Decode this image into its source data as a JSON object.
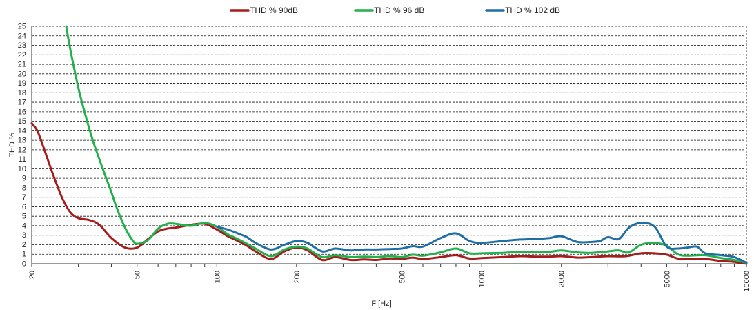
{
  "chart_data": {
    "type": "line",
    "title": "",
    "xlabel": "F [Hz]",
    "ylabel": "THD %",
    "xscale": "log",
    "xlim": [
      20,
      10000
    ],
    "ylim": [
      0,
      25
    ],
    "grid": "horizontal dashed",
    "legend_position": "top-center",
    "x_ticks": [
      "20",
      "50",
      "100",
      "200",
      "500",
      "1000",
      "2000",
      "5000",
      "10000"
    ],
    "y_ticks": [
      "0",
      "1",
      "2",
      "3",
      "4",
      "5",
      "6",
      "7",
      "8",
      "9",
      "10",
      "11",
      "12",
      "13",
      "14",
      "15",
      "16",
      "17",
      "18",
      "19",
      "20",
      "21",
      "22",
      "23",
      "24",
      "25"
    ],
    "series": [
      {
        "name": "THD % 90dB",
        "color": "#a51c1c",
        "x": [
          20,
          21,
          22,
          24,
          26,
          28,
          30,
          33,
          36,
          40,
          45,
          50,
          55,
          60,
          65,
          70,
          80,
          90,
          100,
          110,
          120,
          130,
          140,
          160,
          180,
          200,
          220,
          250,
          280,
          320,
          360,
          400,
          450,
          500,
          550,
          600,
          700,
          800,
          900,
          1000,
          1200,
          1400,
          1600,
          1800,
          2000,
          2300,
          2600,
          3000,
          3500,
          4000,
          4500,
          5000,
          5500,
          6000,
          7000,
          8000,
          9000,
          10000
        ],
        "values": [
          14.8,
          14.0,
          12.5,
          9.5,
          7.0,
          5.4,
          4.8,
          4.6,
          4.1,
          2.7,
          1.7,
          1.7,
          2.6,
          3.4,
          3.7,
          3.8,
          4.1,
          4.2,
          3.6,
          2.9,
          2.4,
          1.9,
          1.3,
          0.5,
          1.3,
          1.7,
          1.4,
          0.4,
          0.7,
          0.4,
          0.45,
          0.4,
          0.55,
          0.5,
          0.65,
          0.5,
          0.7,
          0.9,
          0.55,
          0.6,
          0.7,
          0.8,
          0.75,
          0.75,
          0.8,
          0.65,
          0.7,
          0.8,
          0.8,
          1.1,
          1.1,
          0.95,
          0.55,
          0.5,
          0.5,
          0.3,
          0.2,
          0.0
        ]
      },
      {
        "name": "THD % 96 dB",
        "color": "#22b14c",
        "x": [
          27,
          28,
          30,
          32,
          34,
          36,
          38,
          40,
          42,
          45,
          48,
          50,
          55,
          60,
          65,
          70,
          80,
          90,
          100,
          110,
          120,
          130,
          140,
          160,
          180,
          200,
          220,
          250,
          280,
          320,
          360,
          400,
          450,
          500,
          550,
          600,
          700,
          800,
          900,
          1000,
          1200,
          1400,
          1600,
          1800,
          2000,
          2300,
          2600,
          3000,
          3300,
          3600,
          4000,
          4500,
          5000,
          5500,
          6000,
          7000,
          8000,
          9000,
          10000
        ],
        "values": [
          25,
          22.5,
          18.5,
          15.5,
          13.0,
          11.0,
          9.2,
          7.5,
          5.8,
          3.8,
          2.5,
          2.1,
          2.5,
          3.7,
          4.2,
          4.2,
          4.0,
          4.3,
          3.9,
          3.1,
          2.6,
          2.1,
          1.6,
          0.8,
          1.5,
          1.8,
          1.6,
          0.7,
          0.9,
          0.7,
          0.75,
          0.7,
          0.8,
          0.7,
          0.95,
          0.85,
          1.2,
          1.6,
          1.1,
          1.1,
          1.15,
          1.25,
          1.25,
          1.25,
          1.4,
          1.2,
          1.15,
          1.3,
          1.4,
          1.2,
          2.0,
          2.2,
          1.9,
          1.0,
          0.85,
          0.9,
          0.6,
          0.4,
          0.1
        ]
      },
      {
        "name": "THD % 102 dB",
        "color": "#1f6fa6",
        "x": [
          100,
          110,
          120,
          130,
          140,
          160,
          180,
          200,
          220,
          250,
          280,
          320,
          360,
          400,
          450,
          500,
          550,
          600,
          700,
          800,
          900,
          1000,
          1200,
          1400,
          1600,
          1800,
          2000,
          2300,
          2600,
          2800,
          3000,
          3300,
          3600,
          4000,
          4500,
          5000,
          5500,
          6000,
          6500,
          7000,
          8000,
          9000,
          10000
        ],
        "values": [
          3.9,
          3.6,
          3.2,
          2.8,
          2.2,
          1.5,
          2.0,
          2.4,
          2.2,
          1.3,
          1.6,
          1.4,
          1.5,
          1.5,
          1.55,
          1.6,
          1.85,
          1.8,
          2.7,
          3.2,
          2.4,
          2.2,
          2.4,
          2.55,
          2.6,
          2.7,
          2.9,
          2.3,
          2.3,
          2.4,
          2.8,
          2.6,
          3.8,
          4.3,
          3.9,
          1.8,
          1.6,
          1.7,
          1.8,
          1.1,
          0.9,
          0.7,
          0.1
        ]
      }
    ]
  }
}
